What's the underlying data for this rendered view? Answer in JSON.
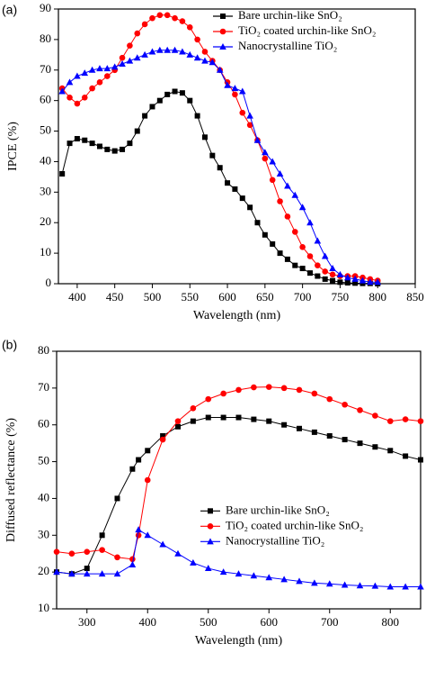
{
  "chart_data": [
    {
      "type": "line",
      "panel_label": "(a)",
      "x_label": "Wavelength (nm)",
      "y_label": "IPCE (%)",
      "xlim": [
        375,
        850
      ],
      "ylim": [
        0,
        90
      ],
      "xticks": [
        400,
        450,
        500,
        550,
        600,
        650,
        700,
        750,
        800,
        850
      ],
      "yticks": [
        0,
        10,
        20,
        30,
        40,
        50,
        60,
        70,
        80,
        90
      ],
      "legend": "upper right",
      "x": [
        380,
        390,
        400,
        410,
        420,
        430,
        440,
        450,
        460,
        470,
        480,
        490,
        500,
        510,
        520,
        530,
        540,
        550,
        560,
        570,
        580,
        590,
        600,
        610,
        620,
        630,
        640,
        650,
        660,
        670,
        680,
        690,
        700,
        710,
        720,
        730,
        740,
        750,
        760,
        770,
        780,
        790,
        800
      ],
      "series": [
        {
          "name": "Bare urchin-like SnO₂",
          "color": "#000000",
          "marker": "square",
          "values": [
            36,
            46,
            47.5,
            47,
            46,
            45,
            44,
            43.5,
            44,
            46,
            50,
            55,
            58,
            60,
            62,
            63,
            62.5,
            60,
            55,
            48,
            42,
            38,
            33,
            31,
            28,
            25,
            20,
            16,
            13,
            10,
            8,
            6,
            5,
            3.5,
            2.5,
            1.5,
            1,
            0.5,
            0.3,
            0.2,
            0.1,
            0.1,
            0
          ]
        },
        {
          "name": "TiO₂ coated urchin-like SnO₂",
          "color": "#ff0000",
          "marker": "circle",
          "values": [
            64,
            61,
            59,
            61,
            64,
            66,
            68,
            70,
            74,
            78,
            82,
            85,
            87,
            88,
            88,
            87,
            86,
            84,
            80,
            76,
            73,
            70,
            66,
            62,
            56,
            52,
            47,
            41,
            34,
            27,
            22,
            17,
            12,
            9,
            6,
            4,
            3,
            2.5,
            2.5,
            2.5,
            2,
            1.5,
            1
          ]
        },
        {
          "name": "Nanocrystalline TiO₂",
          "color": "#0000ff",
          "marker": "triangle",
          "values": [
            63,
            66,
            68,
            69,
            70,
            70.5,
            70.5,
            71,
            72,
            73,
            74,
            75,
            76,
            76.5,
            76.5,
            76.5,
            76,
            75,
            74,
            73,
            72.5,
            70,
            65,
            64,
            63,
            55,
            47,
            43,
            40,
            36,
            32,
            29,
            25,
            20,
            14,
            9,
            5,
            3,
            2,
            1.5,
            1,
            0.5,
            0.5
          ]
        }
      ]
    },
    {
      "type": "line",
      "panel_label": "(b)",
      "x_label": "Wavelength (nm)",
      "y_label": "Diffused reflectance (%)",
      "xlim": [
        250,
        850
      ],
      "ylim": [
        10,
        80
      ],
      "xticks": [
        300,
        400,
        500,
        600,
        700,
        800
      ],
      "yticks": [
        10,
        20,
        30,
        40,
        50,
        60,
        70,
        80
      ],
      "legend": "center right",
      "x": [
        250,
        275,
        300,
        325,
        350,
        375,
        385,
        400,
        425,
        450,
        475,
        500,
        525,
        550,
        575,
        600,
        625,
        650,
        675,
        700,
        725,
        750,
        775,
        800,
        825,
        850
      ],
      "series": [
        {
          "name": "Bare urchin-like SnO₂",
          "color": "#000000",
          "marker": "square",
          "values": [
            20,
            19.5,
            21,
            30,
            40,
            48,
            50.5,
            53,
            57,
            59.5,
            61,
            62,
            62,
            62,
            61.5,
            61,
            60,
            59,
            58,
            57,
            56,
            55,
            54,
            53,
            51.5,
            50.5
          ]
        },
        {
          "name": "TiO₂ coated urchin-like SnO₂",
          "color": "#ff0000",
          "marker": "circle",
          "values": [
            25.5,
            25,
            25.5,
            26,
            24,
            23.5,
            30,
            45,
            56,
            61,
            64.5,
            67,
            68.5,
            69.5,
            70.2,
            70.3,
            70,
            69.5,
            68.5,
            67,
            65.5,
            64,
            62.5,
            61,
            61.5,
            61
          ]
        },
        {
          "name": "Nanocrystalline TiO₂",
          "color": "#0000ff",
          "marker": "triangle",
          "values": [
            20,
            19.5,
            19.5,
            19.5,
            19.5,
            22,
            31.5,
            30,
            27.5,
            25,
            22.5,
            21,
            20,
            19.5,
            19,
            18.5,
            18,
            17.5,
            17,
            16.8,
            16.5,
            16.3,
            16.2,
            16,
            16,
            16
          ]
        }
      ]
    }
  ]
}
